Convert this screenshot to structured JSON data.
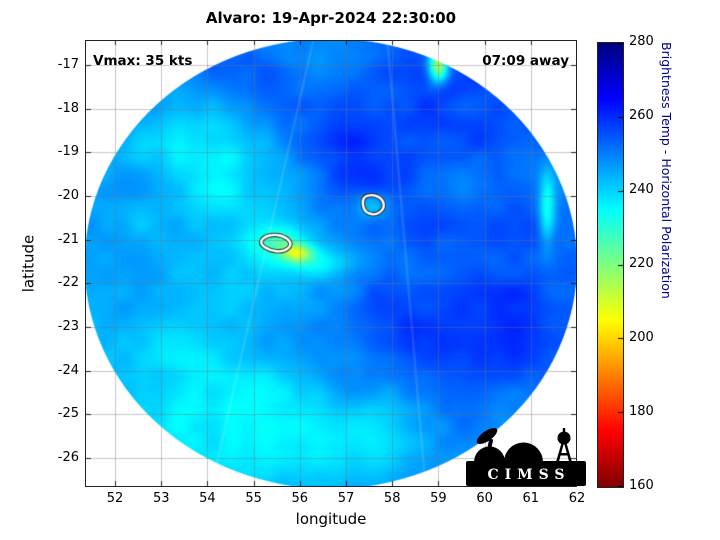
{
  "figure": {
    "background": "#ffffff"
  },
  "chart_data": {
    "type": "heatmap",
    "title": "Alvaro: 19-Apr-2024 22:30:00",
    "annotations": {
      "top_left": "Vmax: 35 kts",
      "top_right": "07:09 away"
    },
    "xlabel": "longitude",
    "ylabel": "latitude",
    "x_ticks": [
      52,
      53,
      54,
      55,
      56,
      57,
      58,
      59,
      60,
      61,
      62
    ],
    "y_ticks": [
      -17,
      -18,
      -19,
      -20,
      -21,
      -22,
      -23,
      -24,
      -25,
      -26
    ],
    "xlim": [
      51.35,
      62.0
    ],
    "ylim": [
      -26.66,
      -16.43
    ],
    "grid": true,
    "colorbar": {
      "label": "Brightness Temp - Horizontal Polarization",
      "min": 160,
      "max": 280,
      "ticks": [
        160,
        180,
        200,
        220,
        240,
        260,
        280
      ],
      "colormap": "jet_reversed",
      "label_color": "#00008b"
    },
    "swath": {
      "center_lon": 56.67,
      "center_lat": -21.55,
      "radius_lon_deg": 5.33,
      "radius_lat_deg": 5.15,
      "background_temp_K": 248
    },
    "noise": {
      "seed": 11,
      "octaves": [
        [
          0.45,
          4.5
        ],
        [
          1.1,
          3.0
        ],
        [
          2.6,
          1.8
        ]
      ]
    },
    "features": [
      {
        "name": "dark-blue-upper-band",
        "lon": 57.5,
        "lat": -18.5,
        "sx": 2.3,
        "sy": 1.4,
        "dT": 8
      },
      {
        "name": "dark-blue-right",
        "lon": 59.6,
        "lat": -21.8,
        "sx": 1.6,
        "sy": 1.3,
        "dT": 9
      },
      {
        "name": "dark-blue-bottom-band",
        "lon": 57.3,
        "lat": -23.4,
        "sx": 2.4,
        "sy": 0.9,
        "dT": 7
      },
      {
        "name": "dark-blue-upper-right",
        "lon": 60.9,
        "lat": -18.6,
        "sx": 1.1,
        "sy": 0.9,
        "dT": 6
      },
      {
        "name": "cyan-left-edge",
        "lon": 52.9,
        "lat": -21.2,
        "sx": 1.4,
        "sy": 2.4,
        "dT": -7
      },
      {
        "name": "cyan-bottom-left",
        "lon": 54.2,
        "lat": -24.4,
        "sx": 1.6,
        "sy": 1.1,
        "dT": -8
      },
      {
        "name": "cyan-center-column",
        "lon": 55.5,
        "lat": -19.6,
        "sx": 1.3,
        "sy": 2.2,
        "dT": -6
      },
      {
        "name": "cyan-bottom-edge",
        "lon": 56.4,
        "lat": -25.7,
        "sx": 1.8,
        "sy": 0.7,
        "dT": -6
      },
      {
        "name": "cyan-upper-left-blotch",
        "lon": 53.6,
        "lat": -18.9,
        "sx": 0.9,
        "sy": 0.9,
        "dT": -5
      },
      {
        "name": "warm-spot-west",
        "lon": 55.6,
        "lat": -21.05,
        "sx": 0.4,
        "sy": 0.28,
        "dT": -16
      },
      {
        "name": "warm-core-yellow",
        "lon": 55.95,
        "lat": -21.3,
        "sx": 0.22,
        "sy": 0.14,
        "dT": -26
      },
      {
        "name": "warm-streak-southeast",
        "lon": 56.35,
        "lat": -21.55,
        "sx": 0.55,
        "sy": 0.25,
        "dT": -12
      },
      {
        "name": "warm-spot-east",
        "lon": 57.55,
        "lat": -20.2,
        "sx": 0.32,
        "sy": 0.24,
        "dT": -12
      },
      {
        "name": "yellow-streak-top-right",
        "lon": 59.0,
        "lat": -17.0,
        "sx": 0.15,
        "sy": 0.28,
        "dT": -40
      },
      {
        "name": "green-sliver-right-edge",
        "lon": 61.35,
        "lat": -20.3,
        "sx": 0.12,
        "sy": 0.6,
        "dT": -18
      }
    ],
    "contours": [
      {
        "name": "storm-center-contour-east",
        "points": [
          [
            57.35,
            -20.02
          ],
          [
            57.6,
            -19.96
          ],
          [
            57.8,
            -20.08
          ],
          [
            57.83,
            -20.3
          ],
          [
            57.62,
            -20.45
          ],
          [
            57.38,
            -20.35
          ]
        ]
      },
      {
        "name": "storm-center-contour-west",
        "points": [
          [
            55.2,
            -20.95
          ],
          [
            55.45,
            -20.87
          ],
          [
            55.72,
            -20.95
          ],
          [
            55.83,
            -21.12
          ],
          [
            55.65,
            -21.28
          ],
          [
            55.35,
            -21.25
          ],
          [
            55.14,
            -21.1
          ]
        ]
      }
    ],
    "seams": [
      [
        [
          56.3,
          -16.4
        ],
        [
          54.1,
          -26.6
        ]
      ],
      [
        [
          57.9,
          -16.5
        ],
        [
          58.7,
          -26.4
        ]
      ]
    ],
    "logo_text": "CIMSS"
  }
}
